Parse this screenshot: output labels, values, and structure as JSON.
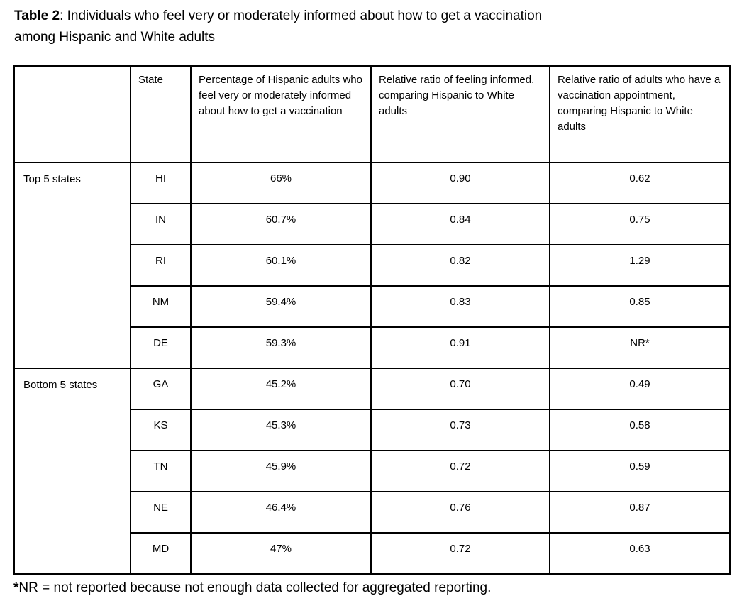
{
  "title": {
    "bold": "Table 2",
    "line1_rest": ": Individuals who feel very or moderately informed about how to get a vaccination",
    "line2": "among Hispanic and White adults"
  },
  "table": {
    "headers": [
      "",
      "State",
      "Percentage of Hispanic adults who feel very or moderately informed about how to get a vaccination",
      "Relative ratio of feeling informed, comparing Hispanic to White adults",
      "Relative ratio of adults who have a vaccination appointment, comparing Hispanic to White adults"
    ],
    "groups": [
      {
        "label": "Top 5 states",
        "rows": [
          [
            "HI",
            "66%",
            "0.90",
            "0.62"
          ],
          [
            "IN",
            "60.7%",
            "0.84",
            "0.75"
          ],
          [
            "RI",
            "60.1%",
            "0.82",
            "1.29"
          ],
          [
            "NM",
            "59.4%",
            "0.83",
            "0.85"
          ],
          [
            "DE",
            "59.3%",
            "0.91",
            "NR*"
          ]
        ]
      },
      {
        "label": "Bottom 5 states",
        "rows": [
          [
            "GA",
            "45.2%",
            "0.70",
            "0.49"
          ],
          [
            "KS",
            "45.3%",
            "0.73",
            "0.58"
          ],
          [
            "TN",
            "45.9%",
            "0.72",
            "0.59"
          ],
          [
            "NE",
            "46.4%",
            "0.76",
            "0.87"
          ],
          [
            "MD",
            "47%",
            "0.72",
            "0.63"
          ]
        ]
      }
    ]
  },
  "footnote": {
    "marker": "*",
    "text": "NR = not reported because not enough data collected for aggregated reporting."
  },
  "colors": {
    "text": "#000000",
    "border": "#000000",
    "background": "#ffffff"
  }
}
